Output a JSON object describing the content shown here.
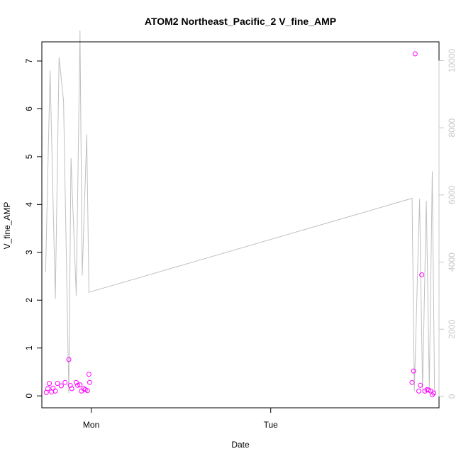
{
  "chart_data": {
    "type": "scatter",
    "title": "ATOM2 Northeast_Pacific_2 V_fine_AMP",
    "xlabel": "Date",
    "ylabel": "V_fine_AMP",
    "y_ticks": [
      0,
      1,
      2,
      3,
      4,
      5,
      6,
      7
    ],
    "y2_ticks": [
      0,
      2000,
      4000,
      6000,
      8000,
      10000
    ],
    "x_ticks": [
      {
        "label": "Mon",
        "value": 0
      },
      {
        "label": "Tue",
        "value": 24
      }
    ],
    "xlim": [
      -6.6,
      46.5
    ],
    "ylim": [
      -0.25,
      7.4
    ],
    "y2lim": [
      -340,
      10560
    ],
    "colors": {
      "points": "#ff00ff",
      "line": "#c0c0c0",
      "right_axis": "#c8c8c8"
    },
    "series": [
      {
        "type": "scatter",
        "axis": "left",
        "points": [
          {
            "x": -6.0,
            "y": 0.07
          },
          {
            "x": -5.8,
            "y": 0.15
          },
          {
            "x": -5.6,
            "y": 0.26
          },
          {
            "x": -5.3,
            "y": 0.08
          },
          {
            "x": -5.1,
            "y": 0.16
          },
          {
            "x": -4.8,
            "y": 0.1
          },
          {
            "x": -4.5,
            "y": 0.26
          },
          {
            "x": -4.0,
            "y": 0.21
          },
          {
            "x": -3.5,
            "y": 0.28
          },
          {
            "x": -3.0,
            "y": 0.76
          },
          {
            "x": -2.8,
            "y": 0.22
          },
          {
            "x": -2.6,
            "y": 0.15
          },
          {
            "x": -2.0,
            "y": 0.28
          },
          {
            "x": -1.8,
            "y": 0.22
          },
          {
            "x": -1.5,
            "y": 0.23
          },
          {
            "x": -1.3,
            "y": 0.1
          },
          {
            "x": -1.0,
            "y": 0.15
          },
          {
            "x": -0.8,
            "y": 0.13
          },
          {
            "x": -0.5,
            "y": 0.11
          },
          {
            "x": -0.3,
            "y": 0.45
          },
          {
            "x": -0.2,
            "y": 0.28
          },
          {
            "x": 42.9,
            "y": 0.28
          },
          {
            "x": 43.1,
            "y": 0.52
          },
          {
            "x": 43.3,
            "y": 7.15
          },
          {
            "x": 43.8,
            "y": 0.1
          },
          {
            "x": 44.0,
            "y": 0.22
          },
          {
            "x": 44.2,
            "y": 2.53
          },
          {
            "x": 44.6,
            "y": 0.1
          },
          {
            "x": 44.9,
            "y": 0.13
          },
          {
            "x": 45.1,
            "y": 0.12
          },
          {
            "x": 45.4,
            "y": 0.1
          },
          {
            "x": 45.6,
            "y": 0.02
          },
          {
            "x": 45.8,
            "y": 0.06
          }
        ]
      },
      {
        "type": "line",
        "axis": "right",
        "points": [
          {
            "x": -6.1,
            "y": 3700
          },
          {
            "x": -5.5,
            "y": 9700
          },
          {
            "x": -4.8,
            "y": 2900
          },
          {
            "x": -4.3,
            "y": 10100
          },
          {
            "x": -3.7,
            "y": 8800
          },
          {
            "x": -3.0,
            "y": 100
          },
          {
            "x": -2.7,
            "y": 7100
          },
          {
            "x": -2.0,
            "y": 3000
          },
          {
            "x": -1.5,
            "y": 10900
          },
          {
            "x": -1.2,
            "y": 3600
          },
          {
            "x": -0.6,
            "y": 7800
          },
          {
            "x": -0.3,
            "y": 3100
          },
          {
            "x": 0.0,
            "y": 3120
          },
          {
            "x": 42.9,
            "y": 5900
          },
          {
            "x": 43.2,
            "y": 150
          },
          {
            "x": 43.9,
            "y": 5880
          },
          {
            "x": 44.3,
            "y": 200
          },
          {
            "x": 44.8,
            "y": 5830
          },
          {
            "x": 45.2,
            "y": 250
          },
          {
            "x": 45.6,
            "y": 6700
          },
          {
            "x": 45.9,
            "y": 120
          }
        ]
      }
    ]
  }
}
